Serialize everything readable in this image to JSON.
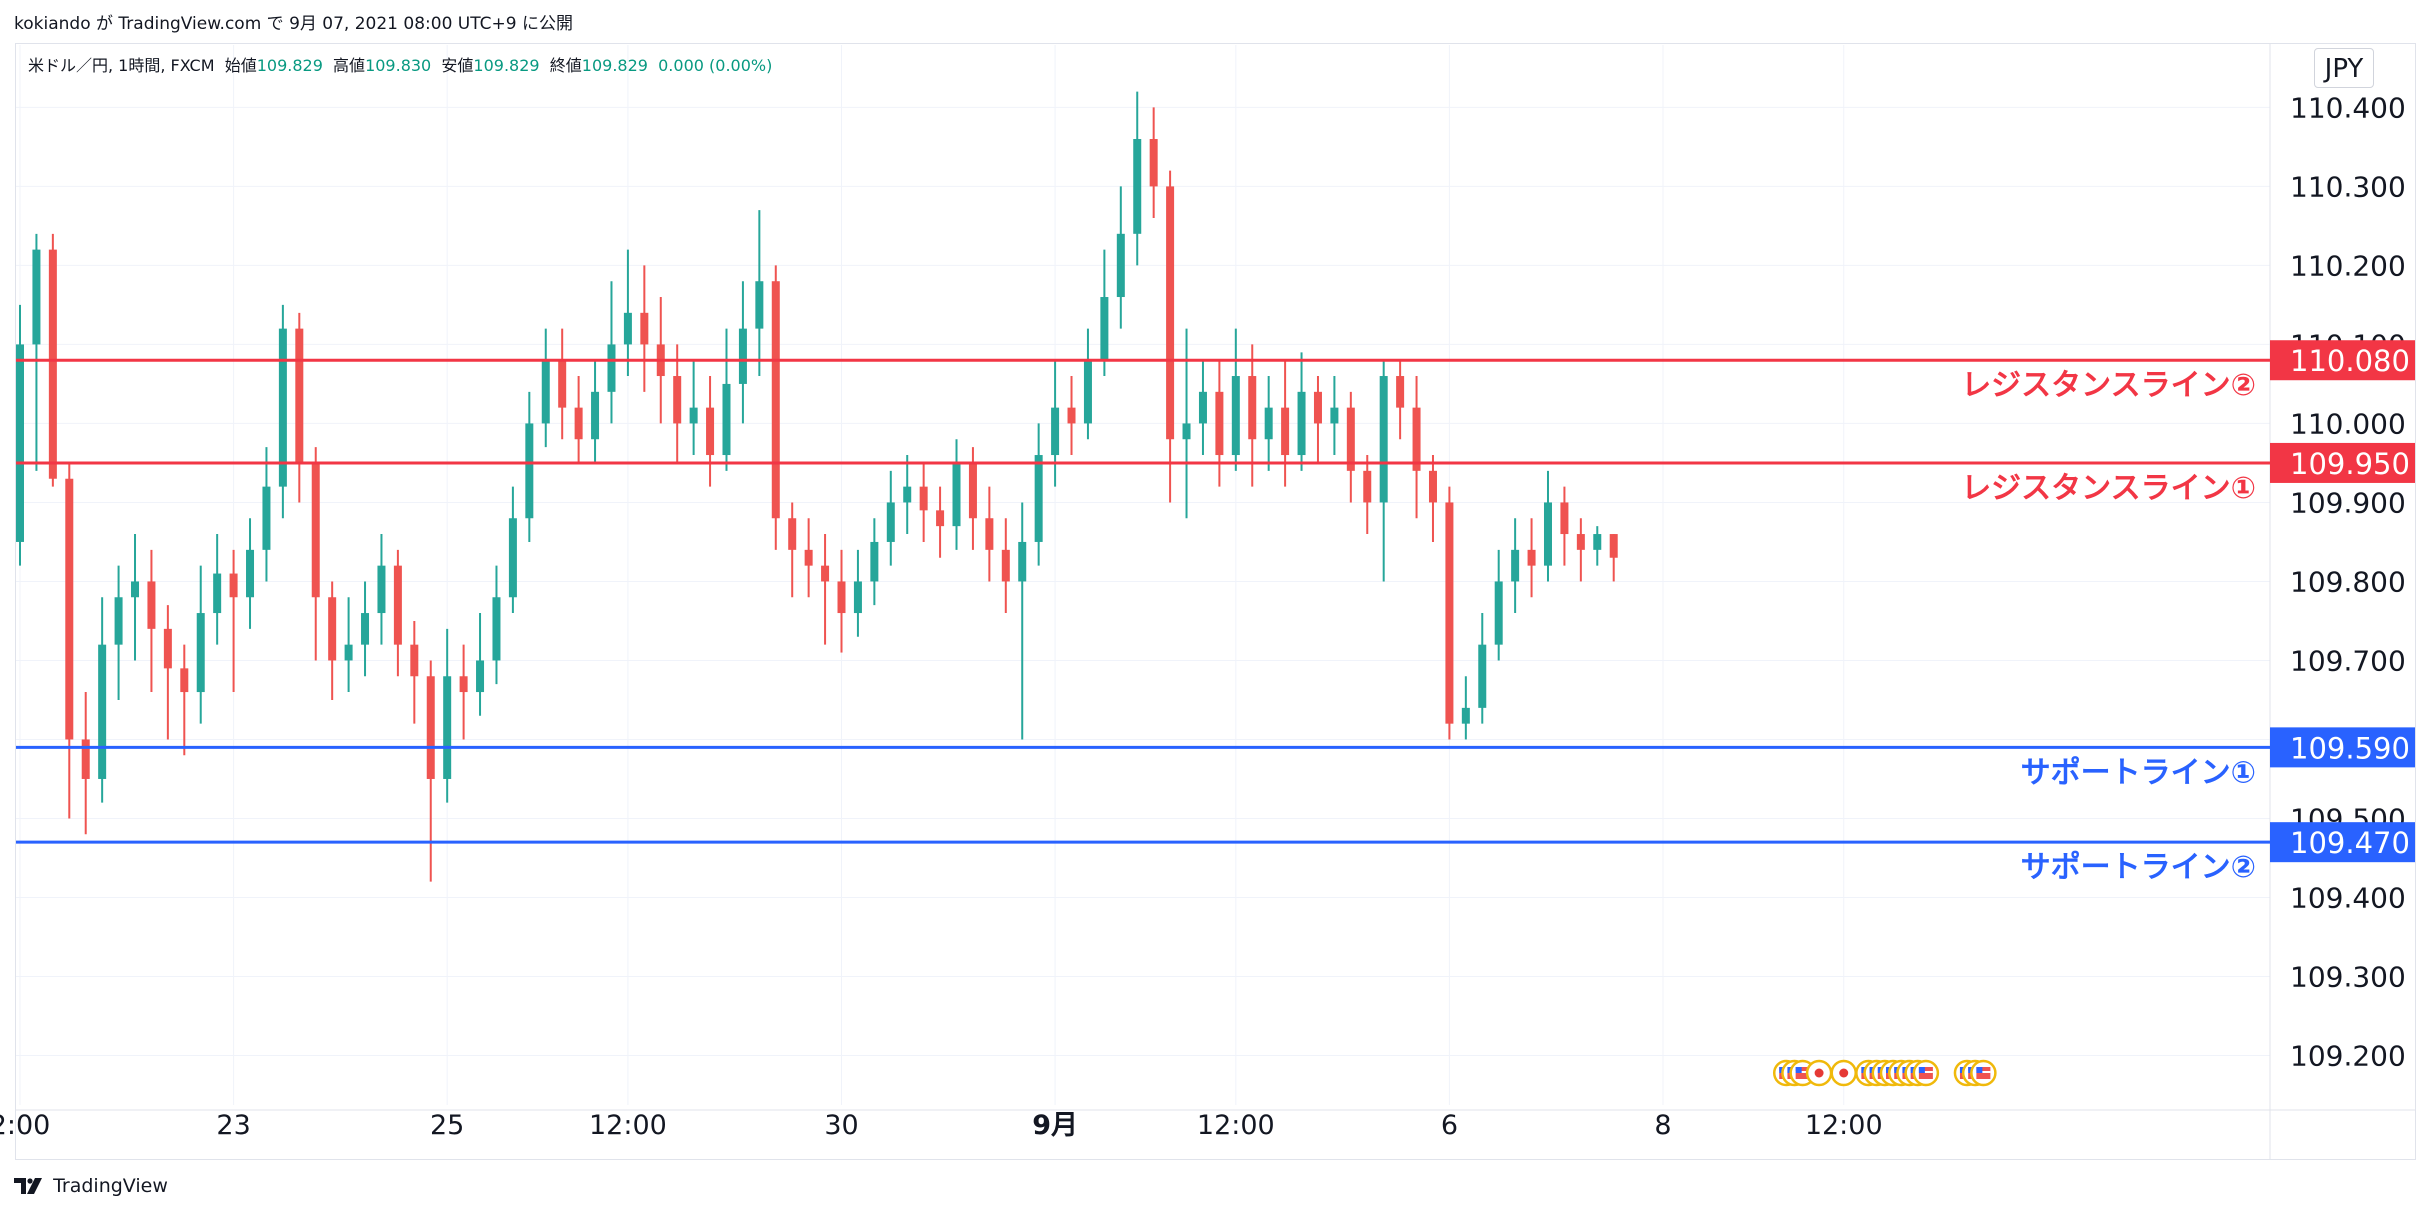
{
  "header": {
    "publish_info": "kokiando が TradingView.com で 9月 07, 2021 08:00 UTC+9 に公開"
  },
  "legend": {
    "symbol": "米ドル／円, 1時間, FXCM",
    "open_label": "始値",
    "open": "109.829",
    "high_label": "高値",
    "high": "109.830",
    "low_label": "安値",
    "low": "109.829",
    "close_label": "終値",
    "close": "109.829",
    "change": "0.000 (0.00%)"
  },
  "currency_button": "JPY",
  "footer": {
    "brand": "TradingView"
  },
  "chart_data": {
    "type": "candlestick",
    "symbol": "米ドル／円, 1時間, FXCM",
    "ylim": [
      109.15,
      110.46
    ],
    "y_ticks": [
      "110.400",
      "110.300",
      "110.200",
      "110.100",
      "110.000",
      "109.900",
      "109.800",
      "109.700",
      "109.600",
      "109.500",
      "109.400",
      "109.300",
      "109.200"
    ],
    "x_ticks": [
      {
        "label": "2:00",
        "index": 0
      },
      {
        "label": "23",
        "index": 13
      },
      {
        "label": "25",
        "index": 26
      },
      {
        "label": "12:00",
        "index": 37
      },
      {
        "label": "30",
        "index": 50
      },
      {
        "label": "9月",
        "index": 63,
        "bold": true
      },
      {
        "label": "12:00",
        "index": 74
      },
      {
        "label": "6",
        "index": 87
      },
      {
        "label": "8",
        "index": 100
      },
      {
        "label": "12:00",
        "index": 111
      }
    ],
    "colors": {
      "up": "#26a69a",
      "down": "#ef5350",
      "resistance": "#f23645",
      "support": "#2962ff",
      "grid": "#f0f3fa"
    },
    "levels": [
      {
        "value": 110.08,
        "price_label": "110.080",
        "label": "レジスタンスライン②",
        "kind": "resistance"
      },
      {
        "value": 109.95,
        "price_label": "109.950",
        "label": "レジスタンスライン①",
        "kind": "resistance"
      },
      {
        "value": 109.59,
        "price_label": "109.590",
        "label": "サポートライン①",
        "kind": "support"
      },
      {
        "value": 109.47,
        "price_label": "109.470",
        "label": "サポートライン②",
        "kind": "support"
      }
    ],
    "candles": [
      [
        109.85,
        110.1,
        109.82,
        110.15
      ],
      [
        110.1,
        110.22,
        109.94,
        110.24
      ],
      [
        110.22,
        109.93,
        109.92,
        110.24
      ],
      [
        109.93,
        109.6,
        109.5,
        109.95
      ],
      [
        109.6,
        109.55,
        109.48,
        109.66
      ],
      [
        109.55,
        109.72,
        109.52,
        109.78
      ],
      [
        109.72,
        109.78,
        109.65,
        109.82
      ],
      [
        109.78,
        109.8,
        109.7,
        109.86
      ],
      [
        109.8,
        109.74,
        109.66,
        109.84
      ],
      [
        109.74,
        109.69,
        109.6,
        109.77
      ],
      [
        109.69,
        109.66,
        109.58,
        109.72
      ],
      [
        109.66,
        109.76,
        109.62,
        109.82
      ],
      [
        109.76,
        109.81,
        109.72,
        109.86
      ],
      [
        109.81,
        109.78,
        109.66,
        109.84
      ],
      [
        109.78,
        109.84,
        109.74,
        109.88
      ],
      [
        109.84,
        109.92,
        109.8,
        109.97
      ],
      [
        109.92,
        110.12,
        109.88,
        110.15
      ],
      [
        110.12,
        109.95,
        109.9,
        110.14
      ],
      [
        109.95,
        109.78,
        109.7,
        109.97
      ],
      [
        109.78,
        109.7,
        109.65,
        109.8
      ],
      [
        109.7,
        109.72,
        109.66,
        109.78
      ],
      [
        109.72,
        109.76,
        109.68,
        109.8
      ],
      [
        109.76,
        109.82,
        109.72,
        109.86
      ],
      [
        109.82,
        109.72,
        109.68,
        109.84
      ],
      [
        109.72,
        109.68,
        109.62,
        109.75
      ],
      [
        109.68,
        109.55,
        109.42,
        109.7
      ],
      [
        109.55,
        109.68,
        109.52,
        109.74
      ],
      [
        109.68,
        109.66,
        109.6,
        109.72
      ],
      [
        109.66,
        109.7,
        109.63,
        109.76
      ],
      [
        109.7,
        109.78,
        109.67,
        109.82
      ],
      [
        109.78,
        109.88,
        109.76,
        109.92
      ],
      [
        109.88,
        110.0,
        109.85,
        110.04
      ],
      [
        110.0,
        110.08,
        109.97,
        110.12
      ],
      [
        110.08,
        110.02,
        109.98,
        110.12
      ],
      [
        110.02,
        109.98,
        109.95,
        110.06
      ],
      [
        109.98,
        110.04,
        109.95,
        110.08
      ],
      [
        110.04,
        110.1,
        110.0,
        110.18
      ],
      [
        110.1,
        110.14,
        110.06,
        110.22
      ],
      [
        110.14,
        110.1,
        110.04,
        110.2
      ],
      [
        110.1,
        110.06,
        110.0,
        110.16
      ],
      [
        110.06,
        110.0,
        109.95,
        110.1
      ],
      [
        110.0,
        110.02,
        109.96,
        110.08
      ],
      [
        110.02,
        109.96,
        109.92,
        110.06
      ],
      [
        109.96,
        110.05,
        109.94,
        110.12
      ],
      [
        110.05,
        110.12,
        110.0,
        110.18
      ],
      [
        110.12,
        110.18,
        110.06,
        110.27
      ],
      [
        110.18,
        109.88,
        109.84,
        110.2
      ],
      [
        109.88,
        109.84,
        109.78,
        109.9
      ],
      [
        109.84,
        109.82,
        109.78,
        109.88
      ],
      [
        109.82,
        109.8,
        109.72,
        109.86
      ],
      [
        109.8,
        109.76,
        109.71,
        109.84
      ],
      [
        109.76,
        109.8,
        109.73,
        109.84
      ],
      [
        109.8,
        109.85,
        109.77,
        109.88
      ],
      [
        109.85,
        109.9,
        109.82,
        109.94
      ],
      [
        109.9,
        109.92,
        109.86,
        109.96
      ],
      [
        109.92,
        109.89,
        109.85,
        109.95
      ],
      [
        109.89,
        109.87,
        109.83,
        109.92
      ],
      [
        109.87,
        109.95,
        109.84,
        109.98
      ],
      [
        109.95,
        109.88,
        109.84,
        109.97
      ],
      [
        109.88,
        109.84,
        109.8,
        109.92
      ],
      [
        109.84,
        109.8,
        109.76,
        109.88
      ],
      [
        109.8,
        109.85,
        109.6,
        109.9
      ],
      [
        109.85,
        109.96,
        109.82,
        110.0
      ],
      [
        109.96,
        110.02,
        109.92,
        110.08
      ],
      [
        110.02,
        110.0,
        109.96,
        110.06
      ],
      [
        110.0,
        110.08,
        109.98,
        110.12
      ],
      [
        110.08,
        110.16,
        110.06,
        110.22
      ],
      [
        110.16,
        110.24,
        110.12,
        110.3
      ],
      [
        110.24,
        110.36,
        110.2,
        110.42
      ],
      [
        110.36,
        110.3,
        110.26,
        110.4
      ],
      [
        110.3,
        109.98,
        109.9,
        110.32
      ],
      [
        109.98,
        110.0,
        109.88,
        110.12
      ],
      [
        110.0,
        110.04,
        109.96,
        110.08
      ],
      [
        110.04,
        109.96,
        109.92,
        110.08
      ],
      [
        109.96,
        110.06,
        109.94,
        110.12
      ],
      [
        110.06,
        109.98,
        109.92,
        110.1
      ],
      [
        109.98,
        110.02,
        109.94,
        110.06
      ],
      [
        110.02,
        109.96,
        109.92,
        110.08
      ],
      [
        109.96,
        110.04,
        109.94,
        110.09
      ],
      [
        110.04,
        110.0,
        109.95,
        110.06
      ],
      [
        110.0,
        110.02,
        109.96,
        110.06
      ],
      [
        110.02,
        109.94,
        109.9,
        110.04
      ],
      [
        109.94,
        109.9,
        109.86,
        109.96
      ],
      [
        109.9,
        110.06,
        109.8,
        110.08
      ],
      [
        110.06,
        110.02,
        109.98,
        110.08
      ],
      [
        110.02,
        109.94,
        109.88,
        110.06
      ],
      [
        109.94,
        109.9,
        109.85,
        109.96
      ],
      [
        109.9,
        109.62,
        109.6,
        109.92
      ],
      [
        109.62,
        109.64,
        109.6,
        109.68
      ],
      [
        109.64,
        109.72,
        109.62,
        109.76
      ],
      [
        109.72,
        109.8,
        109.7,
        109.84
      ],
      [
        109.8,
        109.84,
        109.76,
        109.88
      ],
      [
        109.84,
        109.82,
        109.78,
        109.88
      ],
      [
        109.82,
        109.9,
        109.8,
        109.94
      ],
      [
        109.9,
        109.86,
        109.82,
        109.92
      ],
      [
        109.86,
        109.84,
        109.8,
        109.88
      ],
      [
        109.84,
        109.86,
        109.82,
        109.87
      ],
      [
        109.86,
        109.83,
        109.8,
        109.86
      ]
    ],
    "events": [
      {
        "index": 107.5,
        "icon": "us-flag"
      },
      {
        "index": 108,
        "icon": "us-flag"
      },
      {
        "index": 108.5,
        "icon": "us-flag"
      },
      {
        "index": 109.5,
        "icon": "jp-flag"
      },
      {
        "index": 111,
        "icon": "jp-flag"
      },
      {
        "index": 112.5,
        "icon": "us-flag"
      },
      {
        "index": 113,
        "icon": "us-flag"
      },
      {
        "index": 113.5,
        "icon": "us-flag"
      },
      {
        "index": 114,
        "icon": "us-flag"
      },
      {
        "index": 114.5,
        "icon": "us-flag"
      },
      {
        "index": 115,
        "icon": "us-flag"
      },
      {
        "index": 115.5,
        "icon": "us-flag"
      },
      {
        "index": 116,
        "icon": "us-flag"
      },
      {
        "index": 118.5,
        "icon": "us-flag"
      },
      {
        "index": 119,
        "icon": "us-flag"
      },
      {
        "index": 119.5,
        "icon": "us-flag"
      }
    ]
  }
}
